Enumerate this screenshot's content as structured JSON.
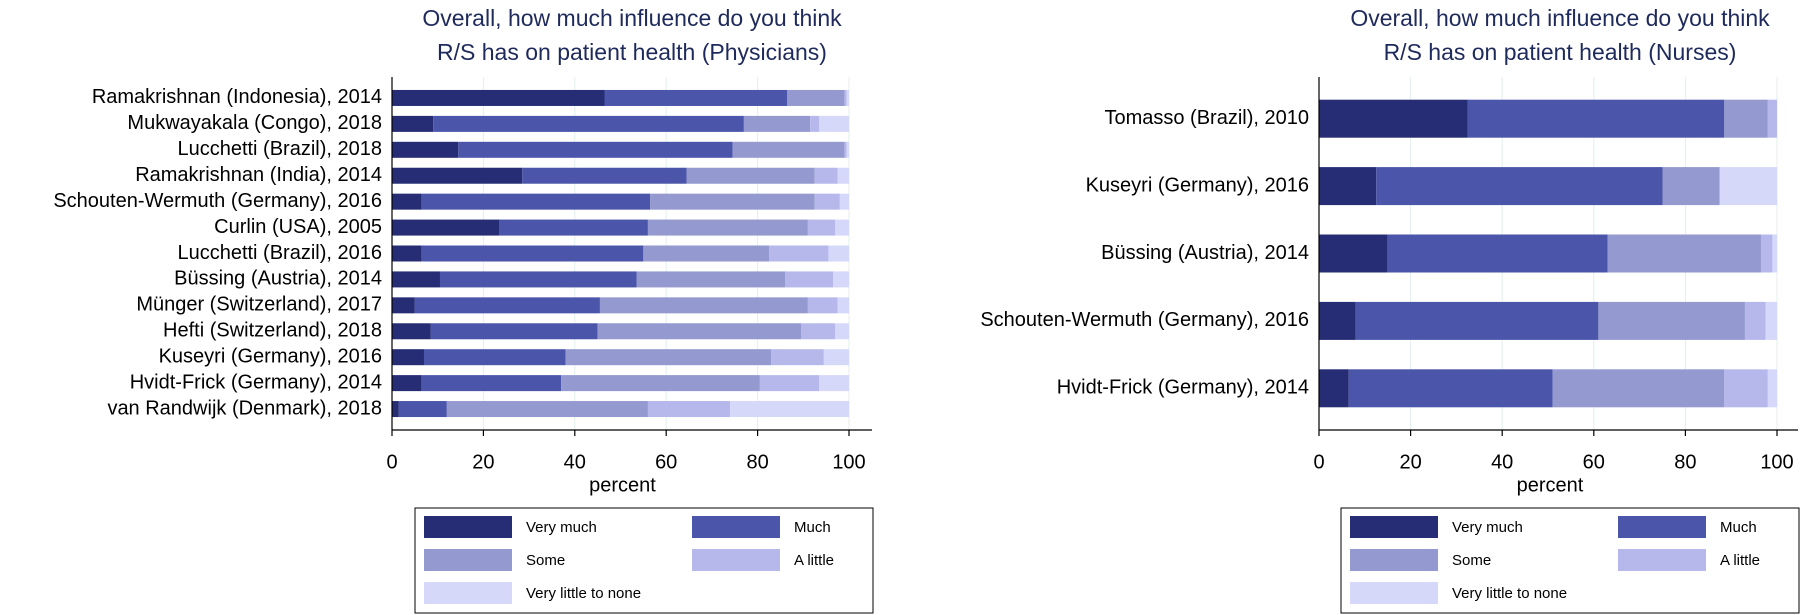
{
  "chart_data": [
    {
      "type": "bar",
      "orientation": "horizontal",
      "stacked": true,
      "title": "Overall, how much influence do you think R/S has on patient health (Physicians)",
      "title_lines": [
        "Overall, how much influence do you think",
        "R/S has on patient health (Physicians)"
      ],
      "xlabel": "percent",
      "xlim": [
        0,
        100
      ],
      "xticks": [
        0,
        20,
        40,
        60,
        80,
        100
      ],
      "grid": true,
      "legend_position": "bottom",
      "categories": [
        "Ramakrishnan (Indonesia), 2014",
        "Mukwayakala (Congo), 2018",
        "Lucchetti (Brazil), 2018",
        "Ramakrishnan (India), 2014",
        "Schouten-Wermuth (Germany), 2016",
        "Curlin (USA), 2005",
        "Lucchetti (Brazil), 2016",
        "Büssing (Austria), 2014",
        "Münger (Switzerland), 2017",
        "Hefti (Switzerland), 2018",
        "Kuseyri (Germany), 2016",
        "Hvidt-Frick (Germany), 2014",
        "van Randwijk (Denmark), 2018"
      ],
      "series": [
        {
          "name": "Very much",
          "color": "#262d74",
          "values": [
            46.5,
            9,
            14.5,
            28.5,
            6.5,
            23.5,
            6.5,
            10.5,
            5,
            8.5,
            7,
            6.5,
            1.5
          ]
        },
        {
          "name": "Much",
          "color": "#4b56aa",
          "values": [
            40,
            68,
            60,
            36,
            50,
            32.5,
            48.5,
            43,
            40.5,
            36.5,
            31,
            30.5,
            10.5
          ]
        },
        {
          "name": "Some",
          "color": "#9499cf",
          "values": [
            12.5,
            14.5,
            24.5,
            28,
            36,
            35,
            27.5,
            32.5,
            45.5,
            44.5,
            45,
            43.5,
            44
          ]
        },
        {
          "name": "A little",
          "color": "#b6b8ec",
          "values": [
            0.5,
            2,
            0.5,
            5,
            5.5,
            6,
            13,
            10.5,
            6.5,
            7.5,
            11.5,
            13,
            18
          ]
        },
        {
          "name": "Very little to none",
          "color": "#d6d8fa",
          "values": [
            0.5,
            6.5,
            0.5,
            2.5,
            2,
            3,
            4.5,
            3.5,
            2.5,
            3,
            5.5,
            6.5,
            26
          ]
        }
      ]
    },
    {
      "type": "bar",
      "orientation": "horizontal",
      "stacked": true,
      "title": "Overall, how much influence do you think R/S has on patient health (Nurses)",
      "title_lines": [
        "Overall, how much influence do you think",
        "R/S has on patient health (Nurses)"
      ],
      "xlabel": "percent",
      "xlim": [
        0,
        100
      ],
      "xticks": [
        0,
        20,
        40,
        60,
        80,
        100
      ],
      "grid": true,
      "legend_position": "bottom",
      "categories": [
        "Tomasso (Brazil), 2010",
        "Kuseyri (Germany), 2016",
        "Büssing (Austria), 2014",
        "Schouten-Wermuth (Germany), 2016",
        "Hvidt-Frick (Germany), 2014"
      ],
      "series": [
        {
          "name": "Very much",
          "color": "#262d74",
          "values": [
            32.5,
            12.5,
            15,
            8,
            6.5
          ]
        },
        {
          "name": "Much",
          "color": "#4b56aa",
          "values": [
            56,
            62.5,
            48,
            53,
            44.5
          ]
        },
        {
          "name": "Some",
          "color": "#9499cf",
          "values": [
            9.5,
            12.5,
            33.5,
            32,
            37.5
          ]
        },
        {
          "name": "A little",
          "color": "#b6b8ec",
          "values": [
            2,
            0,
            2.5,
            4.5,
            9.5
          ]
        },
        {
          "name": "Very little to none",
          "color": "#d6d8fa",
          "values": [
            0,
            12.5,
            1,
            2.5,
            2
          ]
        }
      ]
    }
  ]
}
